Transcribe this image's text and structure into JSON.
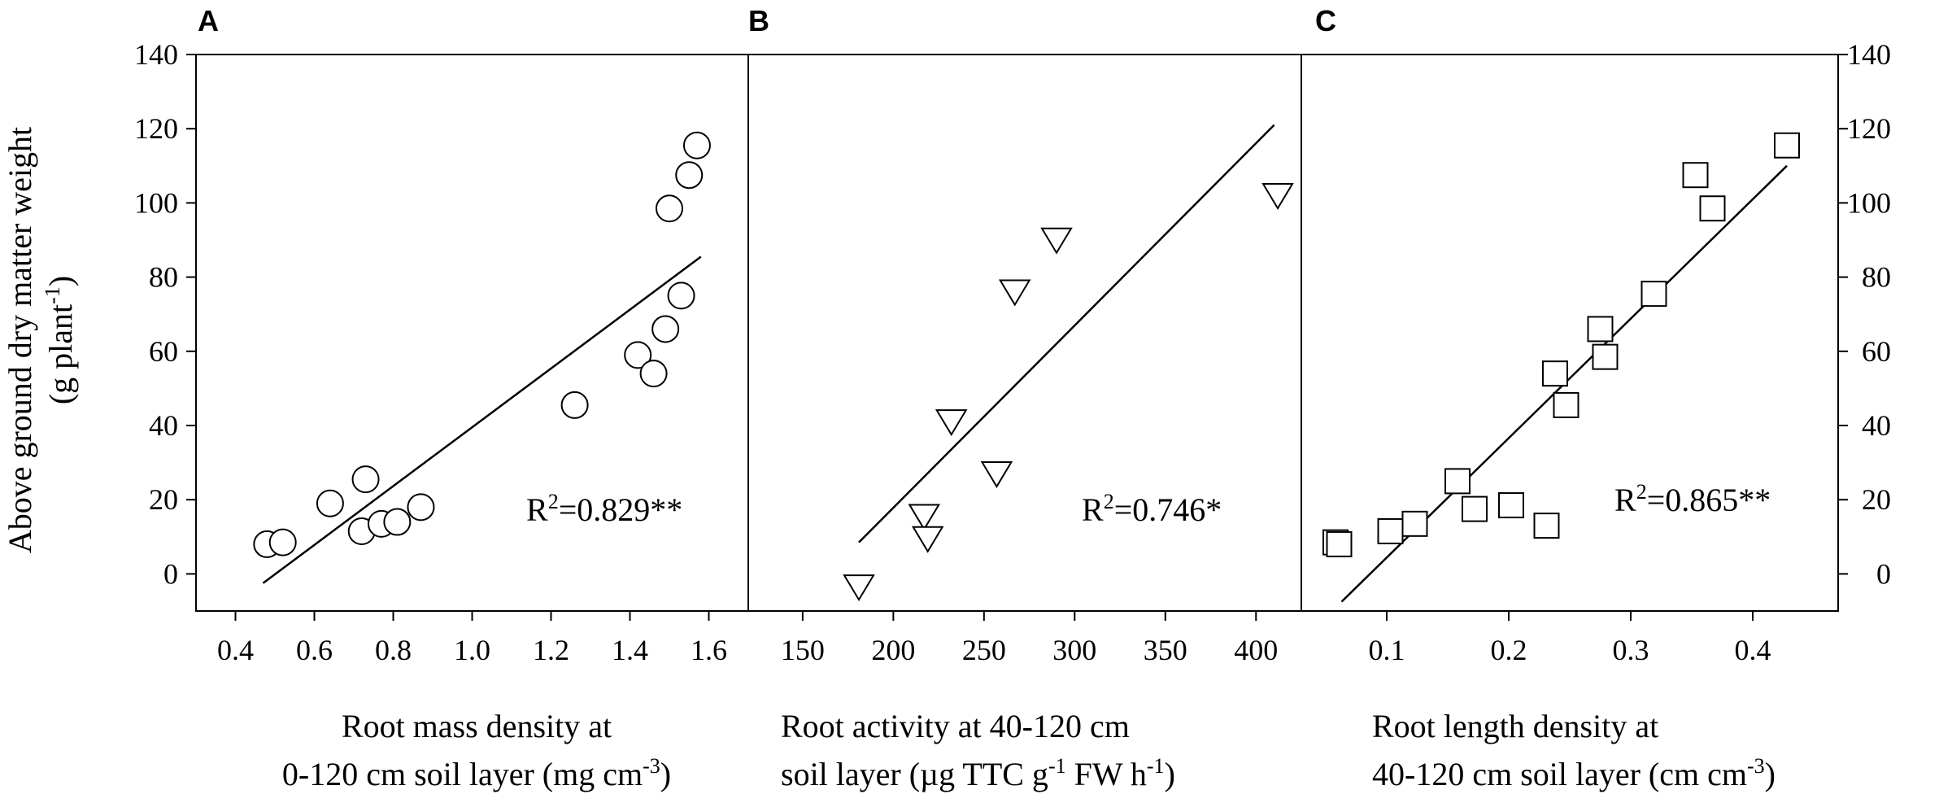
{
  "figure": {
    "y_axis_label_line1": "Above ground dry matter weight",
    "y_axis_label_line2_prefix": "(g plant",
    "y_axis_label_line2_sup": "-1",
    "y_axis_label_line2_suffix": ")"
  },
  "chart_data": [
    {
      "type": "scatter",
      "panel_label": "A",
      "xlabel_line1": "Root mass density at",
      "xlabel_line2_prefix": "0-120 cm soil layer (mg cm",
      "xlabel_line2_sup": "-3",
      "xlabel_line2_suffix": ")",
      "r2_value": "=0.829**",
      "xlim": [
        0.3,
        1.7
      ],
      "ylim": [
        -10,
        140
      ],
      "xticks": [
        0.4,
        0.6,
        0.8,
        1.0,
        1.2,
        1.4,
        1.6
      ],
      "xtick_labels": [
        "0.4",
        "0.6",
        "0.8",
        "1.0",
        "1.2",
        "1.4",
        "1.6"
      ],
      "yticks": [
        0,
        20,
        40,
        60,
        80,
        100,
        120,
        140
      ],
      "ytick_labels": [
        "0",
        "20",
        "40",
        "60",
        "80",
        "100",
        "120",
        "140"
      ],
      "marker": "circle",
      "points": [
        [
          0.48,
          8
        ],
        [
          0.52,
          8.5
        ],
        [
          0.64,
          19
        ],
        [
          0.72,
          11.5
        ],
        [
          0.73,
          25.5
        ],
        [
          0.77,
          13.5
        ],
        [
          0.81,
          14
        ],
        [
          0.87,
          18
        ],
        [
          1.26,
          45.5
        ],
        [
          1.42,
          59
        ],
        [
          1.46,
          54
        ],
        [
          1.49,
          66
        ],
        [
          1.5,
          98.5
        ],
        [
          1.53,
          75
        ],
        [
          1.55,
          107.5
        ],
        [
          1.57,
          115.5
        ]
      ],
      "fit_line": [
        [
          0.47,
          -2.5
        ],
        [
          1.58,
          85.5
        ]
      ]
    },
    {
      "type": "scatter",
      "panel_label": "B",
      "xlabel_line1": "Root activity at 40-120 cm",
      "xlabel_line2_prefix": "soil layer (µg TTC g",
      "xlabel_line2_sup": "-1",
      "xlabel_line2_mid": " FW h",
      "xlabel_line2_sup2": "-1",
      "xlabel_line2_suffix": ")",
      "r2_value": "=0.746*",
      "xlim": [
        120,
        425
      ],
      "ylim": [
        -10,
        140
      ],
      "xticks": [
        150,
        200,
        250,
        300,
        350,
        400
      ],
      "xtick_labels": [
        "150",
        "200",
        "250",
        "300",
        "350",
        "400"
      ],
      "yticks": [
        0,
        20,
        40,
        60,
        80,
        100,
        120,
        140
      ],
      "marker": "triangle-down",
      "points": [
        [
          181,
          -3
        ],
        [
          217,
          16
        ],
        [
          219,
          10
        ],
        [
          232,
          41.5
        ],
        [
          257,
          27.5
        ],
        [
          267,
          76.5
        ],
        [
          290,
          90.5
        ],
        [
          412,
          102.5
        ]
      ],
      "fit_line": [
        [
          181,
          8.5
        ],
        [
          410,
          121
        ]
      ]
    },
    {
      "type": "scatter",
      "panel_label": "C",
      "xlabel_line1": "Root length density at",
      "xlabel_line2_prefix": "40-120 cm soil layer (cm cm",
      "xlabel_line2_sup": "-3",
      "xlabel_line2_suffix": ")",
      "r2_value": "=0.865**",
      "xlim": [
        0.03,
        0.47
      ],
      "ylim": [
        -10,
        140
      ],
      "xticks": [
        0.1,
        0.2,
        0.3,
        0.4
      ],
      "xtick_labels": [
        "0.1",
        "0.2",
        "0.3",
        "0.4"
      ],
      "yticks": [
        0,
        20,
        40,
        60,
        80,
        100,
        120,
        140
      ],
      "ytick_labels": [
        "0",
        "20",
        "40",
        "60",
        "80",
        "100",
        "120",
        "140"
      ],
      "marker": "square",
      "points": [
        [
          0.058,
          8.5
        ],
        [
          0.061,
          8
        ],
        [
          0.103,
          11.5
        ],
        [
          0.123,
          13.5
        ],
        [
          0.158,
          25
        ],
        [
          0.172,
          17.5
        ],
        [
          0.202,
          18.5
        ],
        [
          0.231,
          13
        ],
        [
          0.238,
          54
        ],
        [
          0.247,
          45.5
        ],
        [
          0.275,
          66
        ],
        [
          0.279,
          58.5
        ],
        [
          0.319,
          75.5
        ],
        [
          0.353,
          107.5
        ],
        [
          0.367,
          98.5
        ],
        [
          0.428,
          115.5
        ]
      ],
      "fit_line": [
        [
          0.063,
          -7.5
        ],
        [
          0.428,
          110
        ]
      ]
    }
  ]
}
